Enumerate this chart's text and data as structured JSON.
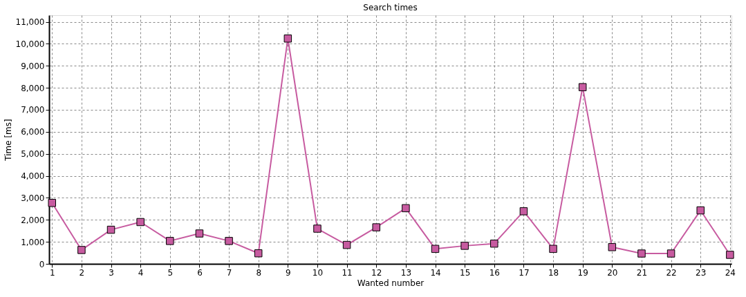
{
  "chart_data": {
    "type": "line",
    "title": "Search times",
    "xlabel": "Wanted number",
    "ylabel": "Time [ms]",
    "x": [
      1,
      2,
      3,
      4,
      5,
      6,
      7,
      8,
      9,
      10,
      11,
      12,
      13,
      14,
      15,
      16,
      17,
      18,
      19,
      20,
      21,
      22,
      23,
      24
    ],
    "series": [
      {
        "color": "#c75ba0",
        "values": [
          2770,
          630,
          1550,
          1900,
          1040,
          1380,
          1040,
          480,
          10240,
          1600,
          860,
          1660,
          2530,
          680,
          820,
          920,
          2390,
          680,
          8030,
          760,
          470,
          470,
          2430,
          410
        ]
      }
    ],
    "xlim": [
      0.9,
      24.05
    ],
    "xticks": [
      1,
      2,
      3,
      4,
      5,
      6,
      7,
      8,
      9,
      10,
      11,
      12,
      13,
      14,
      15,
      16,
      17,
      18,
      19,
      20,
      21,
      22,
      23,
      24
    ],
    "ylim": [
      0,
      11300
    ],
    "yticks": [
      0,
      {
        "value": 1000,
        "label": "1,000"
      },
      {
        "value": 2000,
        "label": "2,000"
      },
      {
        "value": 3000,
        "label": "3,000"
      },
      {
        "value": 4000,
        "label": "4,000"
      },
      {
        "value": 5000,
        "label": "5,000"
      },
      {
        "value": 6000,
        "label": "6,000"
      },
      {
        "value": 7000,
        "label": "7,000"
      },
      {
        "value": 8000,
        "label": "8,000"
      },
      {
        "value": 9000,
        "label": "9,000"
      },
      {
        "value": 10000,
        "label": "10,000"
      },
      {
        "value": 11000,
        "label": "11,000"
      }
    ],
    "grid": true,
    "marker": "square",
    "line_style": "solid"
  }
}
